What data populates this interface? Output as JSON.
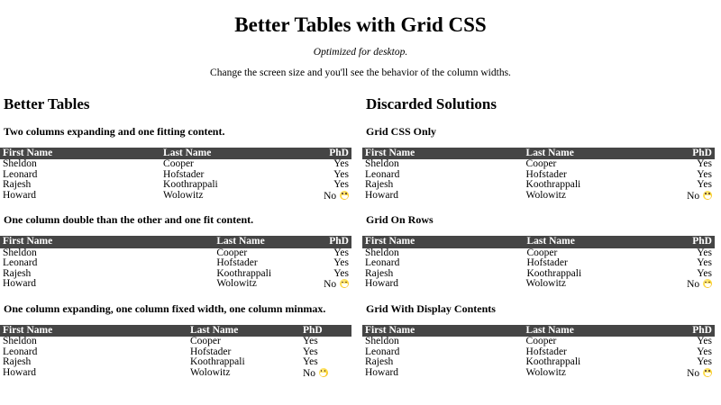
{
  "page": {
    "title": "Better Tables with Grid CSS",
    "subtitle": "Optimized for desktop.",
    "note": "Change the screen size and you'll see the behavior of the column widths."
  },
  "columns": [
    {
      "heading": "Better Tables",
      "sections": [
        {
          "caption": "Two columns expanding and one fitting content."
        },
        {
          "caption": "One column double than the other and one fit content."
        },
        {
          "caption": "One column expanding, one column fixed width, one column minmax."
        }
      ]
    },
    {
      "heading": "Discarded Solutions",
      "sections": [
        {
          "caption": "Grid CSS Only"
        },
        {
          "caption": "Grid On Rows"
        },
        {
          "caption": "Grid With Display Contents"
        }
      ]
    }
  ],
  "table": {
    "headers": [
      "First Name",
      "Last Name",
      "PhD"
    ],
    "rows": [
      [
        "Sheldon",
        "Cooper",
        "Yes"
      ],
      [
        "Leonard",
        "Hofstader",
        "Yes"
      ],
      [
        "Rajesh",
        "Koothrappali",
        "Yes"
      ],
      [
        "Howard",
        "Wolowitz",
        "No 😁"
      ]
    ]
  },
  "colors": {
    "header_bg": "#454545",
    "header_text": "#ffffff",
    "emoji_yellow": "#fdd835"
  }
}
